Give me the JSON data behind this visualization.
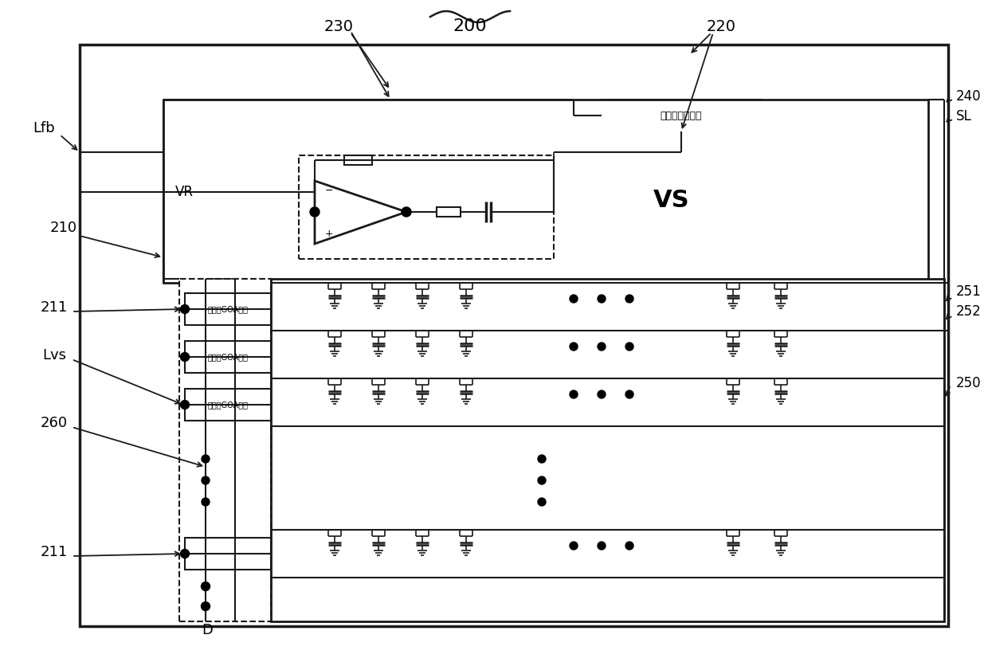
{
  "fig_width": 12.4,
  "fig_height": 8.41,
  "bg_color": "#ffffff",
  "line_color": "#1a1a1a",
  "low_voltage_text": "低电位提供单元",
  "goa1_text": "第一级GOA单元",
  "goa2_text": "第二级GOA单元",
  "goa3_text": "第三级GOA单元",
  "label_200": "200",
  "label_220": "220",
  "label_230": "230",
  "label_240": "240",
  "label_210": "210",
  "label_211a": "211",
  "label_211b": "211",
  "label_Lfb": "Lfb",
  "label_Lvs": "Lvs",
  "label_260": "260",
  "label_SL": "SL",
  "label_251": "251",
  "label_252": "252",
  "label_250": "250",
  "label_VR": "VR",
  "label_VS": "VS",
  "label_D": "D"
}
